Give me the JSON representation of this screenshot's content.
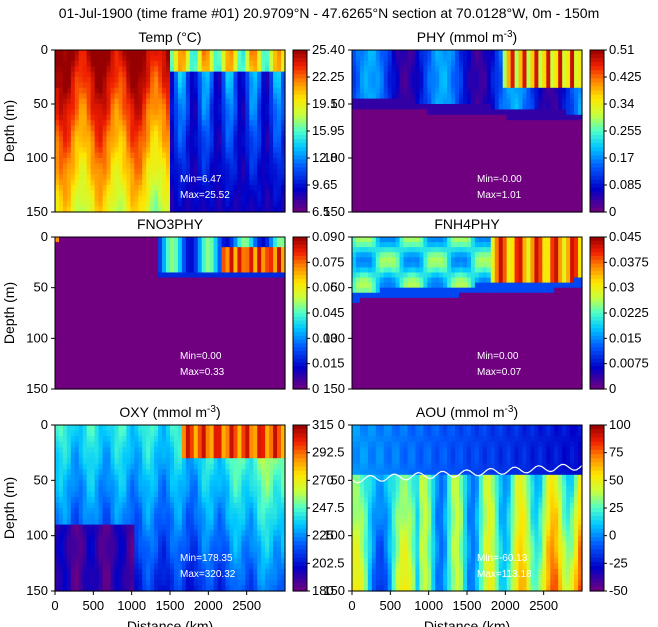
{
  "figure": {
    "title": "01-Jul-1900 (time frame #01) 20.9709°N - 47.6265°N section at 70.0128°W, 0m - 150m"
  },
  "chart_data": [
    {
      "type": "heatmap",
      "title": "Temp (°C)",
      "unit_sup": "",
      "xlabel": "",
      "ylabel": "Depth (m)",
      "xlim": [
        0,
        3000
      ],
      "ylim": [
        150,
        0
      ],
      "yticks": [
        0,
        50,
        100,
        150
      ],
      "xticks": [],
      "colorbar": {
        "min": 6.5,
        "max": 25.4,
        "ticks": [
          "25.4",
          "22.25",
          "19.1",
          "15.95",
          "12.8",
          "9.65",
          "6.5"
        ]
      },
      "stats": {
        "min_label": "Min=6.47",
        "max_label": "Max=25.52"
      },
      "contour": false
    },
    {
      "type": "heatmap",
      "title": "PHY (mmol m",
      "unit_sup": "-3",
      "xlabel": "",
      "ylabel": "",
      "xlim": [
        0,
        3000
      ],
      "ylim": [
        150,
        0
      ],
      "yticks": [
        0,
        50,
        100,
        150
      ],
      "xticks": [],
      "colorbar": {
        "min": 0,
        "max": 0.51,
        "ticks": [
          "0.51",
          "0.425",
          "0.34",
          "0.255",
          "0.17",
          "0.085",
          "0"
        ]
      },
      "stats": {
        "min_label": "Min=-0.00",
        "max_label": "Max=1.01"
      },
      "contour": false
    },
    {
      "type": "heatmap",
      "title": "FNO3PHY",
      "unit_sup": "",
      "xlabel": "",
      "ylabel": "Depth (m)",
      "xlim": [
        0,
        3000
      ],
      "ylim": [
        150,
        0
      ],
      "yticks": [
        0,
        50,
        100,
        150
      ],
      "xticks": [],
      "colorbar": {
        "min": 0,
        "max": 0.09,
        "ticks": [
          "0.09",
          "0.075",
          "0.06",
          "0.045",
          "0.03",
          "0.015",
          "0"
        ]
      },
      "stats": {
        "min_label": "Min=0.00",
        "max_label": "Max=0.33"
      },
      "contour": false
    },
    {
      "type": "heatmap",
      "title": "FNH4PHY",
      "unit_sup": "",
      "xlabel": "",
      "ylabel": "",
      "xlim": [
        0,
        3000
      ],
      "ylim": [
        150,
        0
      ],
      "yticks": [
        0,
        50,
        100,
        150
      ],
      "xticks": [],
      "colorbar": {
        "min": 0,
        "max": 0.045,
        "ticks": [
          "0.045",
          "0.0375",
          "0.03",
          "0.0225",
          "0.015",
          "0.0075",
          "0"
        ]
      },
      "stats": {
        "min_label": "Min=0.00",
        "max_label": "Max=0.07"
      },
      "contour": false
    },
    {
      "type": "heatmap",
      "title": "OXY (mmol m",
      "unit_sup": "-3",
      "xlabel": "Distance (km)",
      "ylabel": "Depth (m)",
      "xlim": [
        0,
        3000
      ],
      "ylim": [
        150,
        0
      ],
      "yticks": [
        0,
        50,
        100,
        150
      ],
      "xticks": [
        0,
        500,
        1000,
        1500,
        2000,
        2500
      ],
      "colorbar": {
        "min": 180,
        "max": 315,
        "ticks": [
          "315",
          "292.5",
          "270",
          "247.5",
          "225",
          "202.5",
          "180"
        ]
      },
      "stats": {
        "min_label": "Min=178.35",
        "max_label": "Max=320.32"
      },
      "contour": false
    },
    {
      "type": "heatmap",
      "title": "AOU (mmol m",
      "unit_sup": "-3",
      "xlabel": "Distance (km)",
      "ylabel": "",
      "xlim": [
        0,
        3000
      ],
      "ylim": [
        150,
        0
      ],
      "yticks": [
        0,
        50,
        100,
        150
      ],
      "xticks": [
        0,
        500,
        1000,
        1500,
        2000,
        2500
      ],
      "colorbar": {
        "min": -50,
        "max": 100,
        "ticks": [
          "100",
          "75",
          "50",
          "25",
          "0",
          "-25",
          "-50"
        ]
      },
      "stats": {
        "min_label": "Min=-60.13",
        "max_label": "Max=113.18"
      },
      "contour": true
    }
  ]
}
